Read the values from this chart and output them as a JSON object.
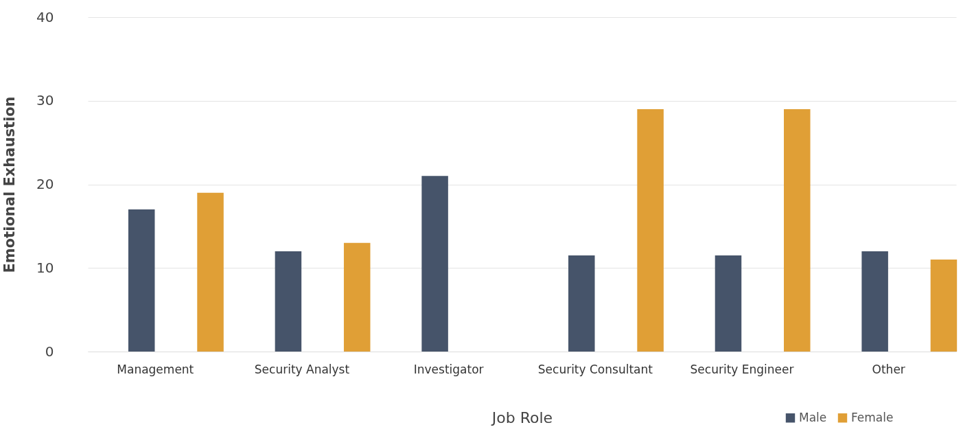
{
  "chart_data": {
    "type": "bar",
    "xlabel": "Job Role",
    "ylabel": "Emotional Exhaustion",
    "categories": [
      "Management",
      "Security Analyst",
      "Investigator",
      "Security Consultant",
      "Security Engineer",
      "Other"
    ],
    "series": [
      {
        "name": "Male",
        "color": "#46546a",
        "values": [
          17,
          12,
          21,
          11.5,
          11.5,
          12
        ]
      },
      {
        "name": "Female",
        "color": "#e09f36",
        "values": [
          19,
          13,
          null,
          29,
          29,
          11
        ]
      }
    ],
    "ylim": [
      0,
      40
    ],
    "yticks": [
      0,
      10,
      20,
      30,
      40
    ],
    "grid": "y",
    "legend": "bottom right"
  }
}
